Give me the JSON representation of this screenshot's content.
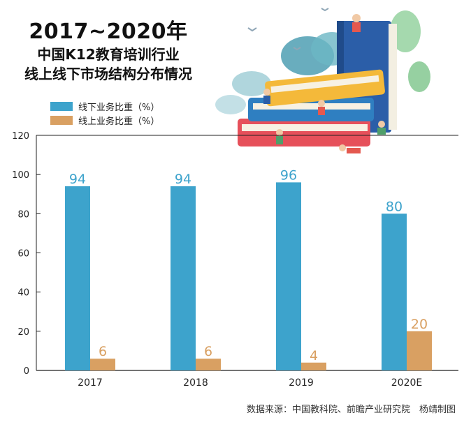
{
  "title": "2017~2020年",
  "subtitle_lines": [
    "中国K12教育培训行业",
    "线上线下市场结构分布情况"
  ],
  "source_text": "数据来源：中国教科院、前瞻产业研究院　杨靖制图",
  "chart_data": {
    "type": "bar",
    "categories": [
      "2017",
      "2018",
      "2019",
      "2020E"
    ],
    "series": [
      {
        "name": "线下业务比重（%）",
        "values": [
          94,
          94,
          96,
          80
        ],
        "color": "#3da3cc"
      },
      {
        "name": "线上业务比重（%）",
        "values": [
          6,
          6,
          4,
          20
        ],
        "color": "#d9a062"
      }
    ],
    "ylim": [
      0,
      120
    ],
    "yticks": [
      0,
      20,
      40,
      60,
      80,
      100,
      120
    ],
    "legend_position": "top-left",
    "grid": false
  }
}
